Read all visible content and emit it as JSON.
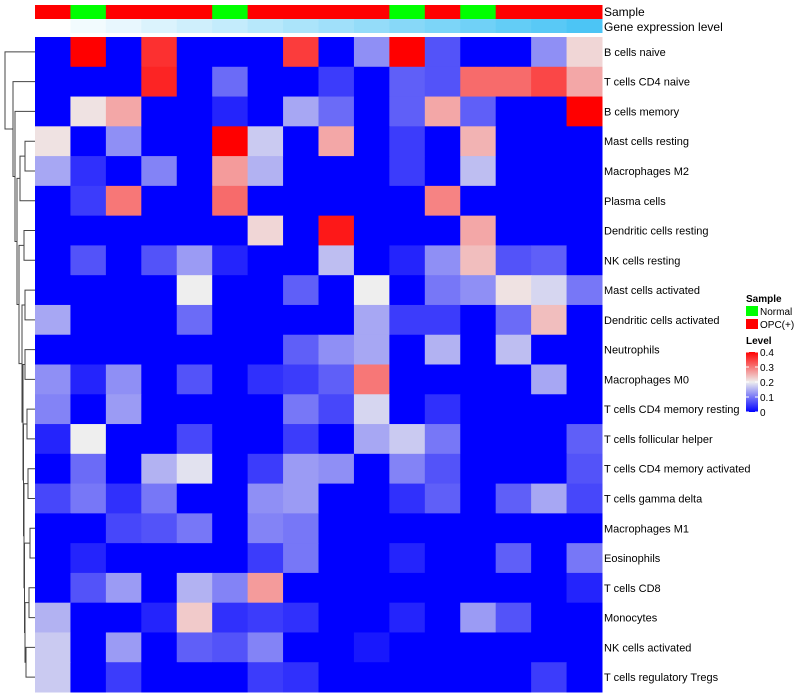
{
  "chart_data": {
    "type": "heatmap",
    "title": "",
    "annotation_rows": [
      "Sample",
      "Gene expression level"
    ],
    "columns_sample": [
      "OPC(+)",
      "Normal",
      "OPC(+)",
      "OPC(+)",
      "OPC(+)",
      "Normal",
      "OPC(+)",
      "OPC(+)",
      "OPC(+)",
      "OPC(+)",
      "Normal",
      "OPC(+)",
      "Normal",
      "OPC(+)",
      "OPC(+)",
      "OPC(+)"
    ],
    "gene_expression_level": [
      0,
      0.07,
      0.13,
      0.2,
      0.27,
      0.33,
      0.4,
      0.47,
      0.53,
      0.6,
      0.67,
      0.73,
      0.8,
      0.87,
      0.93,
      1.0
    ],
    "rows": [
      "B cells naive",
      "T cells CD4 naive",
      "B cells memory",
      "Mast cells resting",
      "Macrophages M2",
      "Plasma cells",
      "Dendritic cells resting",
      "NK cells resting",
      "Mast cells activated",
      "Dendritic cells activated",
      "Neutrophils",
      "Macrophages M0",
      "T cells CD4 memory resting",
      "T cells follicular helper",
      "T cells CD4 memory activated",
      "T cells gamma delta",
      "Macrophages M1",
      "Eosinophils",
      "T cells CD8",
      "Monocytes",
      "NK cells activated",
      "T cells regulatory  Tregs"
    ],
    "values": [
      [
        0,
        0.4,
        0,
        0.36,
        0,
        0,
        0,
        0.35,
        0,
        0.12,
        0.4,
        0.07,
        0,
        0,
        0.12,
        0.22
      ],
      [
        0,
        0,
        0,
        0.37,
        0,
        0.09,
        0,
        0,
        0.05,
        0,
        0.08,
        0.07,
        0.31,
        0.31,
        0.34,
        0.26
      ],
      [
        0,
        0.21,
        0.26,
        0,
        0,
        0.03,
        0,
        0.14,
        0.09,
        0,
        0.08,
        0.26,
        0.08,
        0,
        0,
        0.4
      ],
      [
        0.21,
        0,
        0.12,
        0,
        0,
        0.4,
        0.17,
        0,
        0.26,
        0,
        0.05,
        0,
        0.25,
        0,
        0,
        0
      ],
      [
        0.14,
        0.04,
        0,
        0.11,
        0,
        0.27,
        0.15,
        0,
        0,
        0,
        0.05,
        0,
        0.16,
        0,
        0,
        0
      ],
      [
        0,
        0.05,
        0.3,
        0,
        0,
        0.31,
        0,
        0,
        0,
        0,
        0,
        0.29,
        0,
        0,
        0,
        0
      ],
      [
        0,
        0,
        0,
        0,
        0,
        0,
        0.22,
        0,
        0.38,
        0,
        0,
        0,
        0.26,
        0,
        0,
        0
      ],
      [
        0,
        0.07,
        0,
        0.07,
        0.13,
        0.03,
        0,
        0,
        0.16,
        0,
        0.03,
        0.12,
        0.24,
        0.07,
        0.08,
        0
      ],
      [
        0,
        0,
        0,
        0,
        0.2,
        0,
        0,
        0.08,
        0,
        0.2,
        0,
        0.1,
        0.12,
        0.21,
        0.18,
        0.1
      ],
      [
        0.14,
        0,
        0,
        0,
        0.09,
        0,
        0,
        0,
        0,
        0.14,
        0.05,
        0.05,
        0,
        0.09,
        0.24,
        0
      ],
      [
        0,
        0,
        0,
        0,
        0,
        0,
        0,
        0.08,
        0.12,
        0.14,
        0,
        0.15,
        0,
        0.16,
        0,
        0
      ],
      [
        0.12,
        0.03,
        0.12,
        0,
        0.07,
        0,
        0.04,
        0.05,
        0.08,
        0.3,
        0,
        0,
        0,
        0,
        0.14,
        0
      ],
      [
        0.11,
        0,
        0.13,
        0,
        0,
        0,
        0,
        0.1,
        0.06,
        0.18,
        0,
        0.04,
        0,
        0,
        0,
        0
      ],
      [
        0.03,
        0.2,
        0,
        0,
        0.06,
        0,
        0,
        0.05,
        0,
        0.14,
        0.17,
        0.1,
        0,
        0,
        0,
        0.08
      ],
      [
        0,
        0.09,
        0,
        0.15,
        0.19,
        0,
        0.05,
        0.13,
        0.12,
        0,
        0.11,
        0.07,
        0,
        0,
        0,
        0.07
      ],
      [
        0.06,
        0.1,
        0.04,
        0.1,
        0,
        0,
        0.12,
        0.13,
        0,
        0,
        0.04,
        0.08,
        0,
        0.08,
        0.14,
        0.06
      ],
      [
        0,
        0,
        0.06,
        0.07,
        0.1,
        0,
        0.11,
        0.1,
        0,
        0,
        0,
        0,
        0,
        0,
        0,
        0
      ],
      [
        0,
        0.03,
        0,
        0,
        0,
        0,
        0.05,
        0.1,
        0,
        0,
        0.03,
        0,
        0,
        0.08,
        0,
        0.1
      ],
      [
        0,
        0.07,
        0.13,
        0,
        0.15,
        0.11,
        0.27,
        0,
        0,
        0,
        0,
        0,
        0,
        0,
        0,
        0.03
      ],
      [
        0.15,
        0,
        0,
        0.03,
        0.23,
        0.04,
        0.05,
        0.04,
        0,
        0,
        0.03,
        0,
        0.13,
        0.07,
        0,
        0
      ],
      [
        0.17,
        0,
        0.13,
        0,
        0.08,
        0.07,
        0.11,
        0,
        0,
        0.02,
        0,
        0,
        0,
        0,
        0,
        0
      ],
      [
        0.17,
        0,
        0.05,
        0,
        0,
        0,
        0.05,
        0.04,
        0,
        0,
        0,
        0,
        0,
        0,
        0.05,
        0
      ]
    ],
    "color_scale": {
      "low": "#0000ff",
      "mid": "#eeeeee",
      "high": "#ff0000",
      "range": [
        0,
        0.4
      ]
    },
    "legend": {
      "sample_title": "Sample",
      "sample_entries": [
        {
          "label": "Normal",
          "color": "#00ff00"
        },
        {
          "label": "OPC(+)",
          "color": "#ff0000"
        }
      ],
      "level_title": "Level",
      "level_ticks": [
        "0.4",
        "0.3",
        "0.2",
        "0.1",
        "0"
      ],
      "placement": "right"
    },
    "gene_color_low": "#ffffff",
    "gene_color_high": "#4cc5f5"
  }
}
